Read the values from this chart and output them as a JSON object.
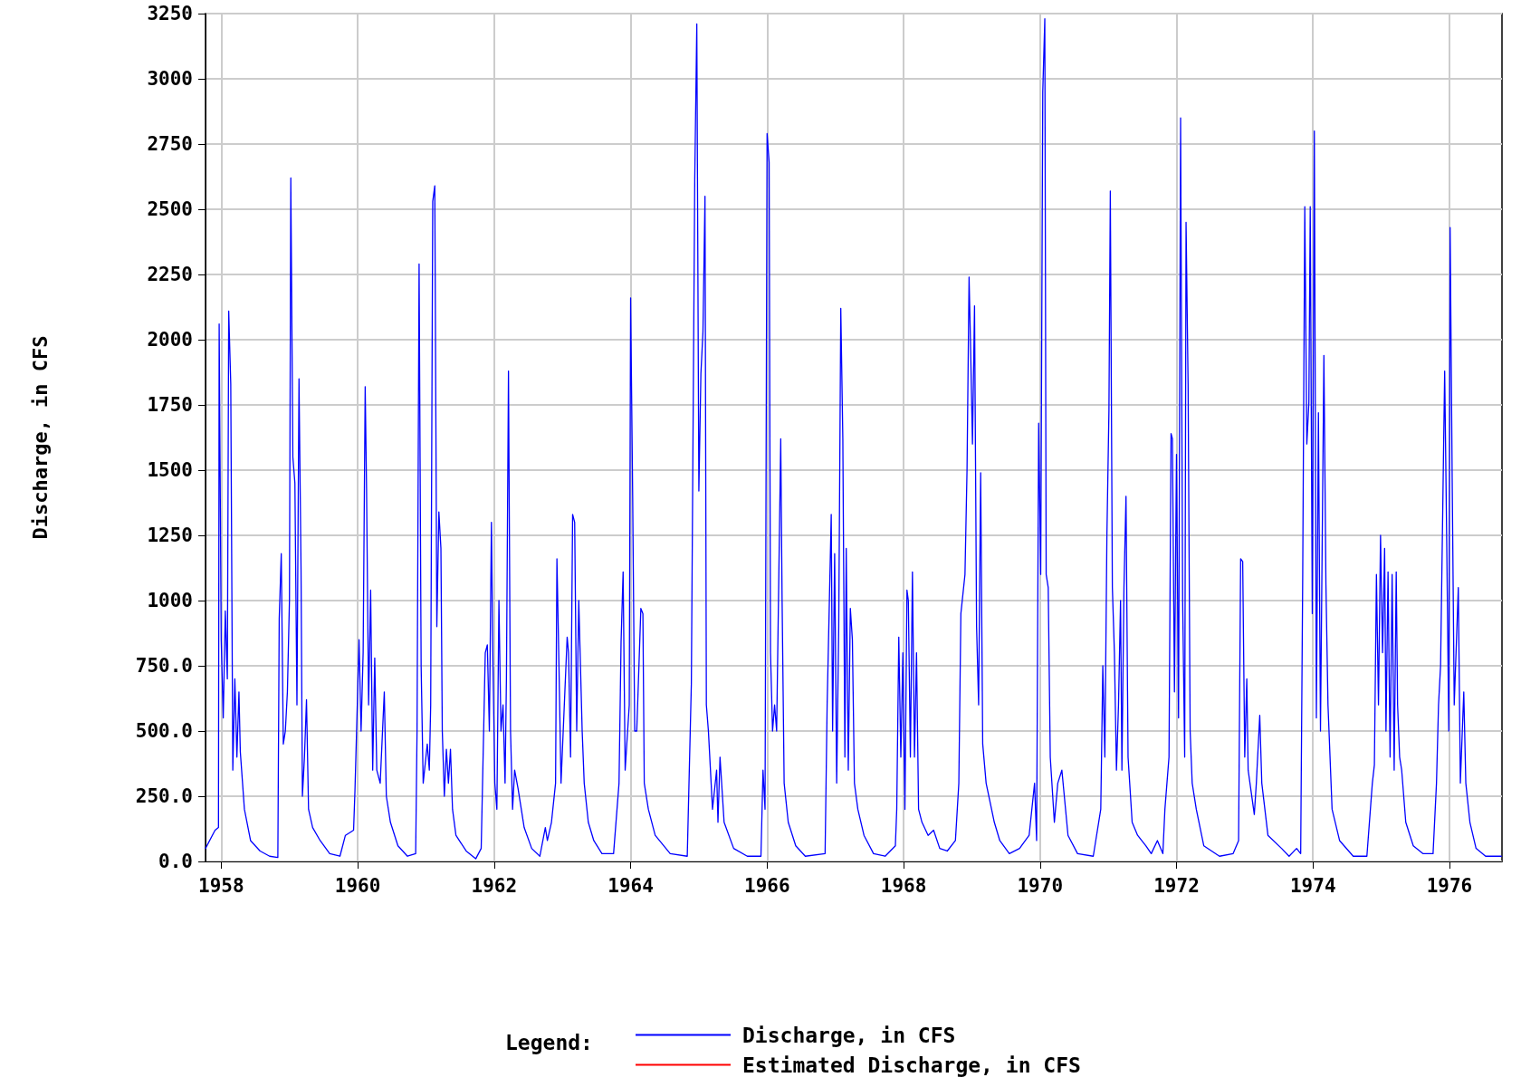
{
  "chart_data": {
    "type": "line",
    "ylabel": "Discharge, in CFS",
    "legend_title": "Legend:",
    "legend": "bottom",
    "grid": true,
    "marker": "none",
    "line_style": "solid",
    "xlim": [
      1957.77,
      1976.77
    ],
    "xticks": [
      1958,
      1960,
      1962,
      1964,
      1966,
      1968,
      1970,
      1972,
      1974,
      1976
    ],
    "ylim": [
      0,
      3250
    ],
    "yticks": [
      {
        "value": 0,
        "label": "0.0"
      },
      {
        "value": 250,
        "label": "250.0"
      },
      {
        "value": 500,
        "label": "500.0"
      },
      {
        "value": 750,
        "label": "750.0"
      },
      1000,
      1250,
      1500,
      1750,
      2000,
      2250,
      2500,
      2750,
      3000,
      3250
    ],
    "series": [
      {
        "name": "Discharge, in CFS",
        "color": "#0000ff",
        "x": [
          1957.77,
          1957.91,
          1957.96,
          1957.97,
          1958.0,
          1958.03,
          1958.06,
          1958.09,
          1958.11,
          1958.14,
          1958.17,
          1958.2,
          1958.23,
          1958.26,
          1958.28,
          1958.34,
          1958.43,
          1958.57,
          1958.71,
          1958.83,
          1958.85,
          1958.88,
          1958.91,
          1958.94,
          1958.97,
          1959.0,
          1959.02,
          1959.05,
          1959.08,
          1959.11,
          1959.14,
          1959.17,
          1959.19,
          1959.22,
          1959.25,
          1959.28,
          1959.34,
          1959.45,
          1959.59,
          1959.74,
          1959.82,
          1959.94,
          1959.96,
          1960.02,
          1960.05,
          1960.08,
          1960.11,
          1960.13,
          1960.16,
          1960.19,
          1960.22,
          1960.25,
          1960.28,
          1960.33,
          1960.39,
          1960.42,
          1960.48,
          1960.59,
          1960.73,
          1960.85,
          1960.87,
          1960.9,
          1960.93,
          1960.96,
          1961.02,
          1961.05,
          1961.07,
          1961.1,
          1961.13,
          1961.16,
          1961.19,
          1961.22,
          1961.24,
          1961.27,
          1961.3,
          1961.33,
          1961.36,
          1961.39,
          1961.44,
          1961.59,
          1961.73,
          1961.81,
          1961.87,
          1961.9,
          1961.93,
          1961.96,
          1961.98,
          1962.01,
          1962.04,
          1962.07,
          1962.1,
          1962.13,
          1962.16,
          1962.18,
          1962.21,
          1962.24,
          1962.27,
          1962.3,
          1962.35,
          1962.44,
          1962.55,
          1962.67,
          1962.75,
          1962.78,
          1962.84,
          1962.9,
          1962.92,
          1962.95,
          1962.98,
          1963.07,
          1963.09,
          1963.12,
          1963.15,
          1963.18,
          1963.21,
          1963.24,
          1963.26,
          1963.29,
          1963.32,
          1963.38,
          1963.46,
          1963.58,
          1963.75,
          1963.83,
          1963.86,
          1963.89,
          1963.92,
          1963.98,
          1964.0,
          1964.03,
          1964.06,
          1964.09,
          1964.15,
          1964.18,
          1964.2,
          1964.26,
          1964.36,
          1964.58,
          1964.83,
          1964.89,
          1964.94,
          1964.97,
          1965.0,
          1965.03,
          1965.06,
          1965.09,
          1965.11,
          1965.14,
          1965.2,
          1965.26,
          1965.28,
          1965.31,
          1965.37,
          1965.51,
          1965.71,
          1965.91,
          1965.94,
          1965.97,
          1966.0,
          1966.03,
          1966.05,
          1966.08,
          1966.11,
          1966.14,
          1966.2,
          1966.22,
          1966.25,
          1966.31,
          1966.42,
          1966.56,
          1966.85,
          1966.88,
          1966.94,
          1966.96,
          1966.99,
          1967.02,
          1967.05,
          1967.08,
          1967.11,
          1967.14,
          1967.16,
          1967.19,
          1967.22,
          1967.25,
          1967.28,
          1967.33,
          1967.42,
          1967.56,
          1967.73,
          1967.88,
          1967.9,
          1967.93,
          1967.96,
          1967.99,
          1968.02,
          1968.05,
          1968.07,
          1968.1,
          1968.13,
          1968.16,
          1968.19,
          1968.22,
          1968.27,
          1968.36,
          1968.44,
          1968.53,
          1968.64,
          1968.76,
          1968.81,
          1968.84,
          1968.9,
          1968.93,
          1968.96,
          1968.98,
          1969.01,
          1969.04,
          1969.07,
          1969.1,
          1969.13,
          1969.16,
          1969.21,
          1969.33,
          1969.41,
          1969.55,
          1969.7,
          1969.84,
          1969.92,
          1969.95,
          1969.98,
          1970.01,
          1970.04,
          1970.07,
          1970.09,
          1970.12,
          1970.15,
          1970.21,
          1970.26,
          1970.32,
          1970.41,
          1970.55,
          1970.78,
          1970.89,
          1970.92,
          1970.95,
          1970.98,
          1971.01,
          1971.03,
          1971.06,
          1971.09,
          1971.12,
          1971.15,
          1971.18,
          1971.2,
          1971.23,
          1971.26,
          1971.29,
          1971.35,
          1971.43,
          1971.55,
          1971.63,
          1971.72,
          1971.8,
          1971.83,
          1971.89,
          1971.92,
          1971.94,
          1971.97,
          1972.0,
          1972.03,
          1972.06,
          1972.09,
          1972.12,
          1972.14,
          1972.17,
          1972.2,
          1972.23,
          1972.29,
          1972.4,
          1972.63,
          1972.83,
          1972.91,
          1972.94,
          1972.97,
          1973.0,
          1973.03,
          1973.05,
          1973.14,
          1973.17,
          1973.22,
          1973.25,
          1973.34,
          1973.54,
          1973.65,
          1973.76,
          1973.82,
          1973.85,
          1973.88,
          1973.91,
          1973.94,
          1973.96,
          1973.99,
          1974.02,
          1974.05,
          1974.08,
          1974.11,
          1974.14,
          1974.16,
          1974.19,
          1974.22,
          1974.28,
          1974.39,
          1974.59,
          1974.79,
          1974.87,
          1974.9,
          1974.93,
          1974.96,
          1974.99,
          1975.02,
          1975.05,
          1975.07,
          1975.1,
          1975.13,
          1975.16,
          1975.19,
          1975.22,
          1975.24,
          1975.27,
          1975.3,
          1975.36,
          1975.47,
          1975.61,
          1975.76,
          1975.81,
          1975.84,
          1975.87,
          1975.93,
          1975.96,
          1975.99,
          1976.01,
          1976.04,
          1976.07,
          1976.13,
          1976.16,
          1976.21,
          1976.24,
          1976.3,
          1976.39,
          1976.53,
          1976.76
        ],
        "values": [
          50,
          120,
          130,
          2060,
          850,
          550,
          960,
          700,
          2110,
          1830,
          350,
          700,
          400,
          650,
          420,
          200,
          80,
          40,
          20,
          15,
          930,
          1180,
          450,
          500,
          650,
          1000,
          2620,
          1550,
          1450,
          600,
          1850,
          1120,
          250,
          400,
          620,
          200,
          130,
          80,
          30,
          20,
          100,
          120,
          270,
          850,
          500,
          800,
          1820,
          1430,
          600,
          1040,
          350,
          780,
          350,
          300,
          650,
          250,
          150,
          60,
          20,
          30,
          500,
          2290,
          750,
          300,
          450,
          350,
          600,
          2530,
          2590,
          900,
          1340,
          1200,
          500,
          250,
          430,
          300,
          430,
          200,
          100,
          40,
          10,
          50,
          800,
          830,
          500,
          1300,
          800,
          300,
          200,
          1000,
          500,
          600,
          300,
          700,
          1880,
          500,
          200,
          350,
          280,
          130,
          50,
          20,
          130,
          80,
          150,
          300,
          1160,
          750,
          300,
          860,
          800,
          400,
          1330,
          1300,
          500,
          1000,
          800,
          500,
          300,
          150,
          80,
          30,
          30,
          300,
          840,
          1110,
          350,
          600,
          2160,
          1400,
          500,
          500,
          970,
          950,
          300,
          200,
          100,
          30,
          20,
          680,
          2620,
          3210,
          1420,
          1870,
          2030,
          2550,
          600,
          500,
          200,
          350,
          150,
          400,
          150,
          50,
          20,
          20,
          350,
          200,
          2790,
          2680,
          800,
          500,
          600,
          500,
          1620,
          1000,
          300,
          150,
          60,
          20,
          30,
          600,
          1330,
          500,
          1180,
          300,
          900,
          2120,
          1620,
          400,
          1200,
          350,
          970,
          850,
          300,
          200,
          100,
          30,
          20,
          60,
          200,
          860,
          400,
          800,
          200,
          1040,
          1000,
          400,
          1110,
          400,
          800,
          200,
          150,
          100,
          120,
          50,
          40,
          80,
          300,
          950,
          1100,
          1500,
          2240,
          2000,
          1600,
          2130,
          900,
          600,
          1490,
          450,
          300,
          150,
          80,
          30,
          50,
          100,
          300,
          80,
          1680,
          1100,
          2950,
          3230,
          1100,
          1050,
          400,
          150,
          300,
          350,
          100,
          30,
          20,
          200,
          750,
          400,
          1250,
          1730,
          2570,
          1050,
          800,
          350,
          600,
          1000,
          350,
          1050,
          1400,
          400,
          150,
          100,
          60,
          30,
          80,
          30,
          200,
          400,
          1640,
          1620,
          650,
          1560,
          550,
          2850,
          1000,
          400,
          2450,
          1830,
          500,
          300,
          200,
          60,
          20,
          30,
          80,
          1160,
          1150,
          400,
          700,
          350,
          180,
          300,
          560,
          300,
          100,
          50,
          20,
          50,
          30,
          1110,
          2510,
          1600,
          1760,
          2510,
          950,
          2800,
          550,
          1720,
          500,
          1360,
          1940,
          1060,
          600,
          200,
          80,
          20,
          20,
          300,
          370,
          1100,
          600,
          1250,
          800,
          1200,
          500,
          1110,
          400,
          1100,
          350,
          1110,
          600,
          400,
          350,
          150,
          60,
          30,
          30,
          300,
          600,
          750,
          1880,
          1230,
          500,
          2430,
          1470,
          600,
          1050,
          300,
          650,
          300,
          150,
          50,
          20,
          20
        ]
      },
      {
        "name": "Estimated Discharge, in CFS",
        "color": "#ff0000"
      }
    ]
  }
}
